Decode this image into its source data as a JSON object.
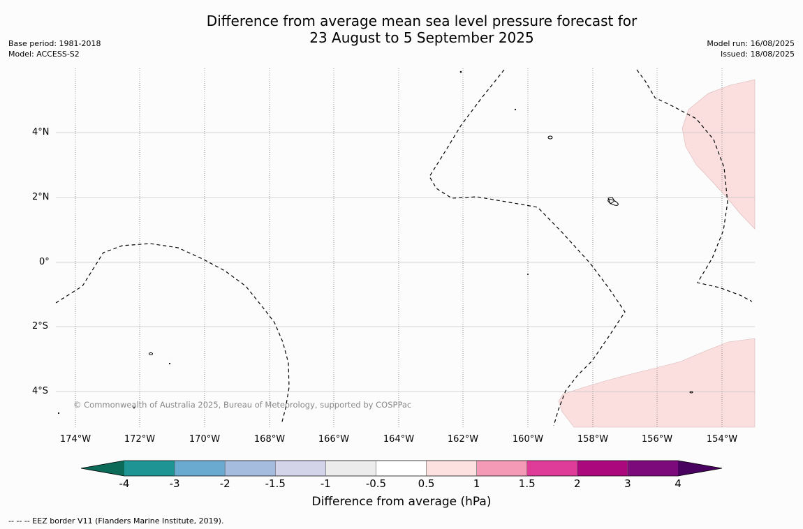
{
  "title": {
    "line1": "Difference from average mean sea level pressure forecast for",
    "line2": "23 August to 5 September 2025"
  },
  "meta_left": {
    "base_period": "Base period: 1981-2018",
    "model": "Model: ACCESS-S2"
  },
  "meta_right": {
    "model_run": "Model run: 16/08/2025",
    "issued": "Issued: 18/08/2025"
  },
  "map": {
    "lat_labels": [
      "4°N",
      "2°N",
      "0°",
      "2°S",
      "4°S"
    ],
    "lon_labels": [
      "174°W",
      "172°W",
      "170°W",
      "168°W",
      "166°W",
      "164°W",
      "162°W",
      "160°W",
      "158°W",
      "156°W",
      "154°W"
    ],
    "copyright": "© Commonwealth of Australia 2025, Bureau of Meteorology, supported by COSPPac",
    "anomaly_fill_color": "#fbdede",
    "anomaly_category": "0.5 to 1"
  },
  "colorbar": {
    "ticks": [
      "-4",
      "-3",
      "-2",
      "-1.5",
      "-1",
      "-0.5",
      "0.5",
      "1",
      "1.5",
      "2",
      "3",
      "4"
    ],
    "colors": [
      "#0b6a58",
      "#1e9494",
      "#6aaad0",
      "#a6bcdf",
      "#d3d3ea",
      "#ececec",
      "#ffffff",
      "#fde1e1",
      "#f59ab6",
      "#de3c98",
      "#ab087e",
      "#7c0a7b",
      "#4a0260"
    ],
    "label": "Difference from average (hPa)"
  },
  "footnote": "--  --  -- EEZ border V11 (Flanders Marine Institute, 2019)."
}
